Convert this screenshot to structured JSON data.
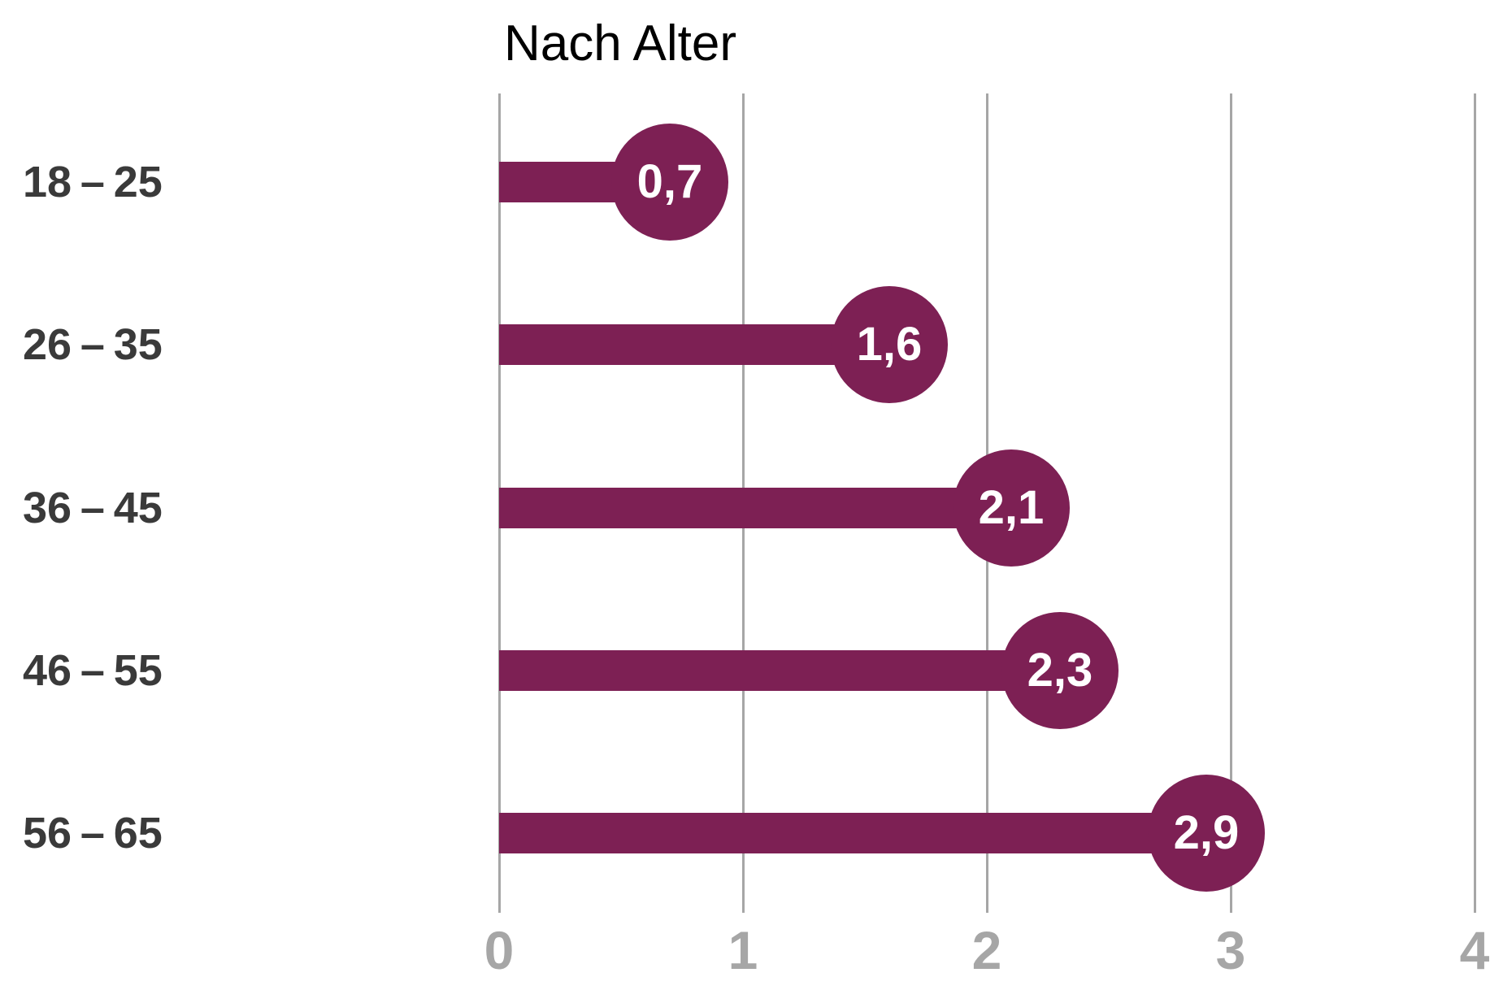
{
  "title": "Nach Alter",
  "colors": {
    "accent": "#7D2054",
    "gridline": "#A6A6A6",
    "tick_label": "#A6A6A6",
    "category_label": "#3A3A3A",
    "value_label": "#FFFFFF",
    "title": "#000000",
    "background": "#FFFFFF"
  },
  "chart_data": {
    "type": "bar",
    "style": "lollipop",
    "orientation": "horizontal",
    "title": "Nach Alter",
    "categories": [
      "18 – 25",
      "26 – 35",
      "36 – 45",
      "46 – 55",
      "56 – 65"
    ],
    "values": [
      0.7,
      1.6,
      2.1,
      2.3,
      2.9
    ],
    "value_labels": [
      "0,7",
      "1,6",
      "2,1",
      "2,3",
      "2,9"
    ],
    "xlabel": "",
    "ylabel": "",
    "x_ticks": [
      0,
      1,
      2,
      3,
      4
    ],
    "x_tick_labels": [
      "0",
      "1",
      "2",
      "3",
      "4"
    ],
    "xlim": [
      0,
      4
    ],
    "grid": true,
    "legend": false,
    "decimal_separator": ","
  }
}
